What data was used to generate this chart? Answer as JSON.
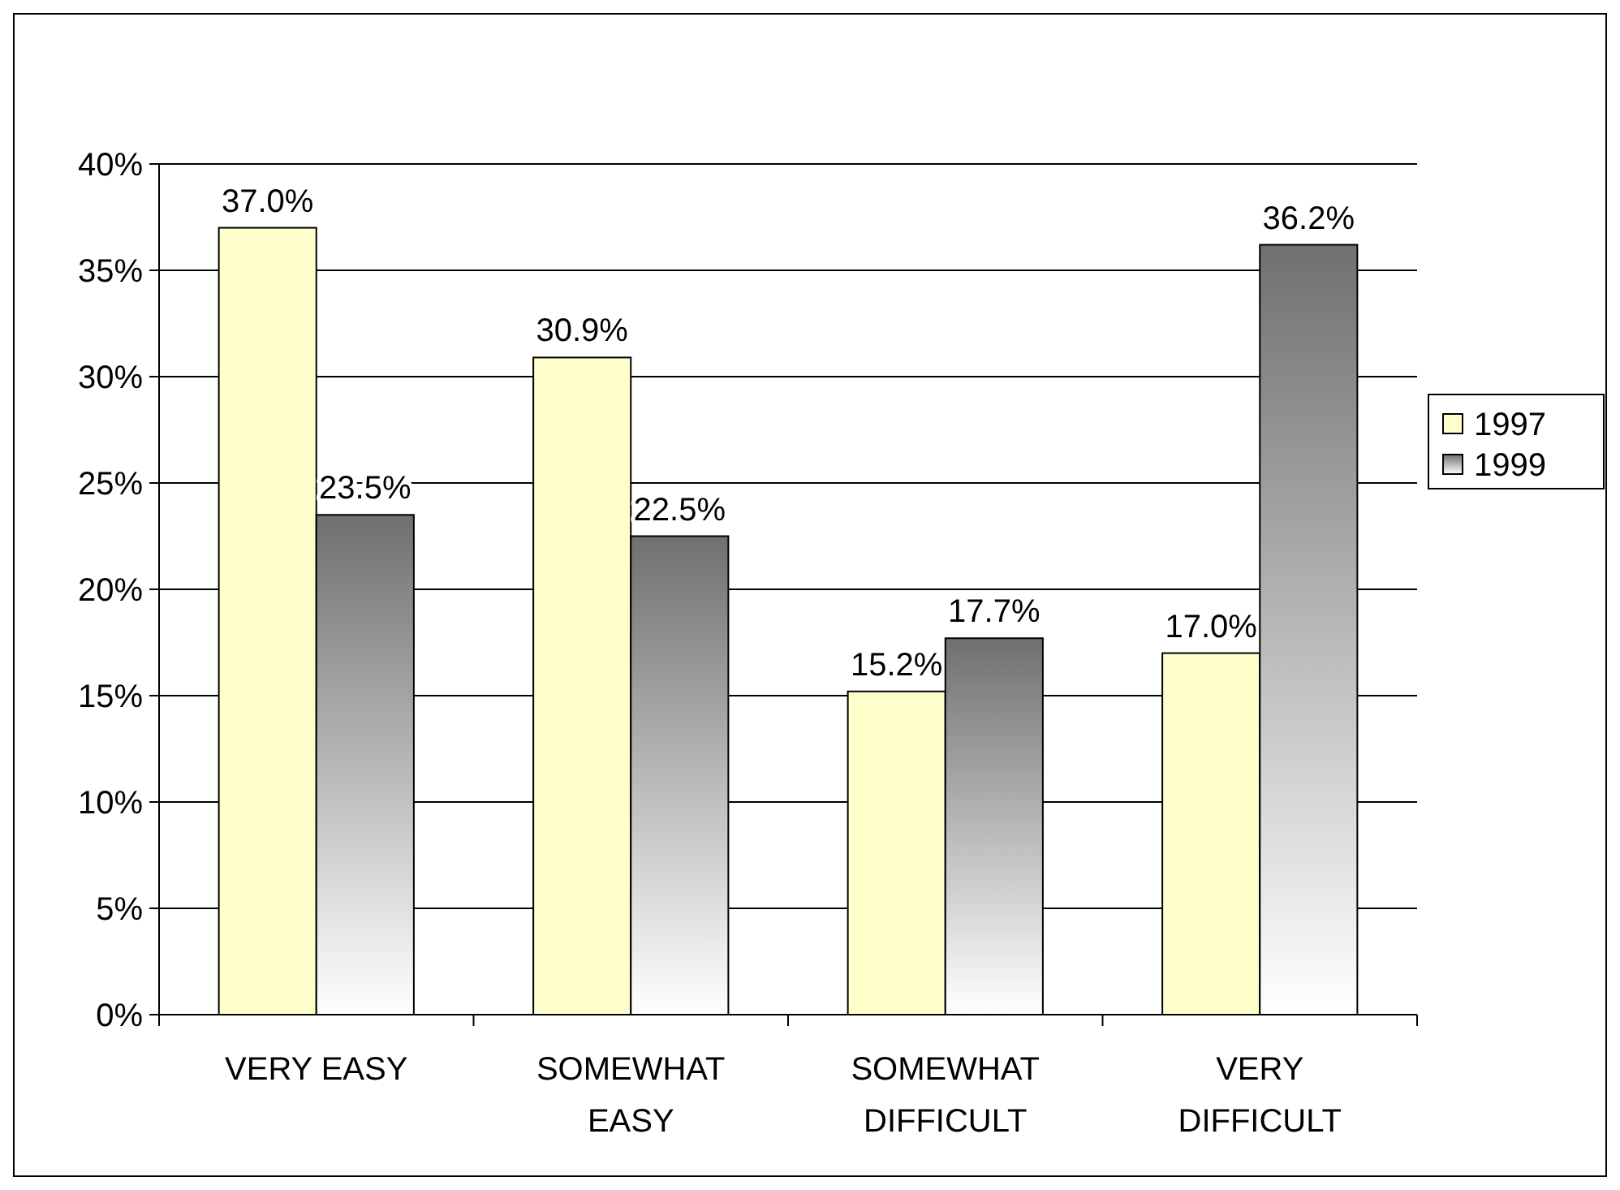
{
  "chart_data": {
    "type": "bar",
    "categories": [
      "VERY EASY",
      "SOMEWHAT EASY",
      "SOMEWHAT DIFFICULT",
      "VERY DIFFICULT"
    ],
    "series": [
      {
        "name": "1997",
        "color": "#ffffcc",
        "values": [
          37.0,
          30.9,
          15.2,
          17.0
        ],
        "value_labels": [
          "37.0%",
          "30.9%",
          "15.2%",
          "17.0%"
        ]
      },
      {
        "name": "1999",
        "color": "#707070",
        "values": [
          23.5,
          22.5,
          17.7,
          36.2
        ],
        "value_labels": [
          "23.5%",
          "22.5%",
          "17.7%",
          "36.2%"
        ]
      }
    ],
    "ylim": [
      0,
      40
    ],
    "yticks": [
      {
        "value": 0,
        "label": "0%"
      },
      {
        "value": 5,
        "label": "5%"
      },
      {
        "value": 10,
        "label": "10%"
      },
      {
        "value": 15,
        "label": "15%"
      },
      {
        "value": 20,
        "label": "20%"
      },
      {
        "value": 25,
        "label": "25%"
      },
      {
        "value": 30,
        "label": "30%"
      },
      {
        "value": 35,
        "label": "35%"
      },
      {
        "value": 40,
        "label": "40%"
      }
    ],
    "grid": "y",
    "legend": "right"
  }
}
